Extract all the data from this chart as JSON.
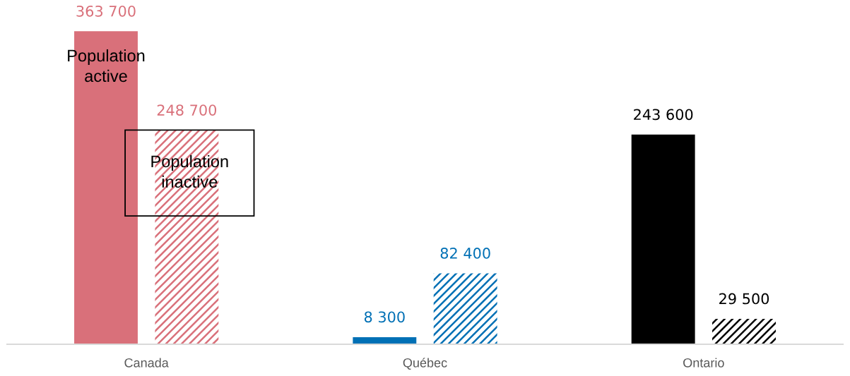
{
  "chart_data": {
    "type": "bar",
    "categories": [
      "Canada",
      "Québec",
      "Ontario"
    ],
    "series": [
      {
        "name": "Population active",
        "colors": [
          "#d9707a",
          "#0070b5",
          "#000000"
        ],
        "values": [
          363700,
          8300,
          243600
        ],
        "value_labels": [
          "363 700",
          "8 300",
          "243 600"
        ]
      },
      {
        "name": "Population inactive",
        "colors": [
          "#d9707a",
          "#0070b5",
          "#000000"
        ],
        "values": [
          248700,
          82400,
          29500
        ],
        "value_labels": [
          "248 700",
          "82 400",
          "29 500"
        ]
      }
    ],
    "legend": false,
    "grid": false
  }
}
